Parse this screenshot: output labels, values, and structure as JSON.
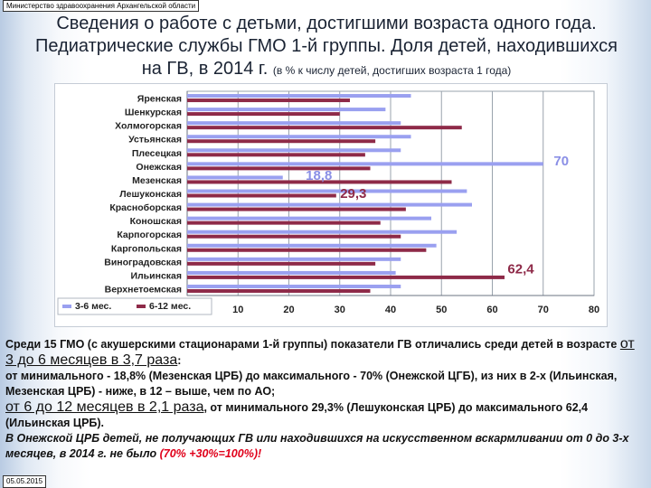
{
  "header": {
    "ministry": "Министерство здравоохранения Архангельской области",
    "title_line1": "Сведения о работе с детьми, достигшими возраста одного года.",
    "title_line2": "Педиатрические службы ГМО 1-й группы. Доля детей, находившихся",
    "title_line3": "на ГВ, в 2014 г.",
    "title_note": "(в % к числу детей, достигших возраста 1 года)"
  },
  "chart_data": {
    "type": "bar",
    "orientation": "horizontal",
    "categories": [
      "Яренская",
      "Шенкурская",
      "Холмогорская",
      "Устьянская",
      "Плесецкая",
      "Онежская",
      "Мезенская",
      "Лешуконская",
      "Красноборская",
      "Коношская",
      "Карпогорская",
      "Каргопольская",
      "Виноградовская",
      "Ильинская",
      "Верхнетоемская"
    ],
    "series": [
      {
        "name": "3-6 мес.",
        "color": "#9aa0f0",
        "values": [
          44,
          39,
          42,
          44,
          42,
          70,
          18.8,
          55,
          56,
          48,
          53,
          49,
          42,
          41,
          42
        ]
      },
      {
        "name": "6-12 мес.",
        "color": "#8e2a48",
        "values": [
          32,
          30,
          54,
          37,
          35,
          36,
          52,
          29.3,
          43,
          38,
          42,
          47,
          37,
          62.4,
          36
        ]
      }
    ],
    "data_labels": [
      {
        "category": "Онежская",
        "series": "3-6 мес.",
        "text": "70",
        "color": "#8a8fe6"
      },
      {
        "category": "Мезенская",
        "series": "3-6 мес.",
        "text": "18,8",
        "color": "#8a8fe6"
      },
      {
        "category": "Лешуконская",
        "series": "6-12 мес.",
        "text": "29,3",
        "color": "#8e2a48"
      },
      {
        "category": "Ильинская",
        "series": "6-12 мес.",
        "text": "62,4",
        "color": "#8e2a48"
      }
    ],
    "xticks": [
      10,
      20,
      30,
      40,
      50,
      60,
      70,
      80
    ],
    "xlim": [
      0,
      80
    ],
    "grid": true,
    "legend_position": "bottom-left"
  },
  "summary": {
    "p1_a": "Среди 15 ГМО (с акушерскими стационарами 1-й группы) показатели ГВ отличались среди детей в возрасте ",
    "p1_b": "от 3 до 6 месяцев в 3,7 раза",
    "p1_c": ":",
    "p2": "от минимального - 18,8% (Мезенская ЦРБ) до максимального - 70% (Онежской ЦГБ), из них в 2-х (Ильинская, Мезенская ЦРБ) - ниже, в 12 – выше, чем по АО;",
    "p3_a": "от 6 до 12 месяцев в 2,1 раза",
    "p3_b": ", от минимального 29,3% (Лешуконская ЦРБ) до максимального 62,4 (Ильинская ЦРБ).",
    "p4_a": "В Онежской ЦРБ детей, не получающих ГВ или находившихся на искусственном вскармливании от 0 до 3-х месяцев, в 2014 г. не было ",
    "p4_b": "(70% +30%=100%)!"
  },
  "footer": {
    "date": "05.05.2015"
  }
}
